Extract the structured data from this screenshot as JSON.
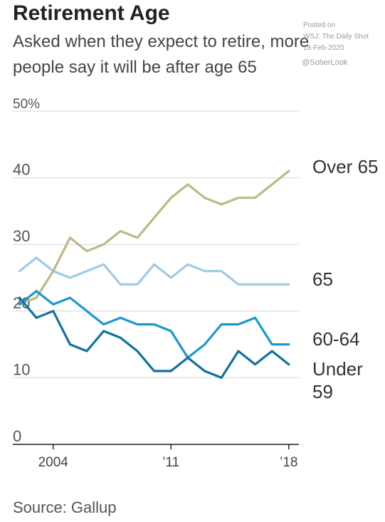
{
  "header": {
    "title": "Retirement Age",
    "subtitle_line1": "Asked when they expect to retire, more",
    "subtitle_line2": "people say it will be after age 65"
  },
  "watermark": {
    "line1": "Posted on",
    "line2": "WSJ: The Daily Shot",
    "line3": "18-Feb-2020",
    "line4": "@SoberLook"
  },
  "source": "Source: Gallup",
  "chart_data": {
    "type": "line",
    "title": "Retirement Age",
    "xlabel": "",
    "ylabel": "",
    "xlim": [
      2001.6,
      2018.6
    ],
    "ylim": [
      0,
      50
    ],
    "y_ticks": [
      {
        "value": 0,
        "label": "0"
      },
      {
        "value": 10,
        "label": "10"
      },
      {
        "value": 20,
        "label": "20"
      },
      {
        "value": 30,
        "label": "30"
      },
      {
        "value": 40,
        "label": "40"
      },
      {
        "value": 50,
        "label": "50%"
      }
    ],
    "x_ticks": [
      {
        "value": 2004,
        "label": "2004"
      },
      {
        "value": 2011,
        "label": "’11"
      },
      {
        "value": 2018,
        "label": "’18"
      }
    ],
    "grid": "horizontal",
    "x": [
      2002,
      2003,
      2004,
      2005,
      2006,
      2007,
      2008,
      2009,
      2010,
      2011,
      2012,
      2013,
      2014,
      2015,
      2016,
      2017,
      2018
    ],
    "series": [
      {
        "name": "Over 65",
        "color": "#bdb985",
        "label_lines": [
          "Over 65"
        ],
        "values": [
          21,
          22,
          26,
          31,
          29,
          30,
          32,
          31,
          34,
          37,
          39,
          37,
          36,
          37,
          37,
          39,
          41
        ]
      },
      {
        "name": "65",
        "color": "#9fcbe7",
        "label_lines": [
          "65"
        ],
        "values": [
          26,
          28,
          26,
          25,
          26,
          27,
          24,
          24,
          27,
          25,
          27,
          26,
          26,
          24,
          24,
          24,
          24
        ]
      },
      {
        "name": "60-64",
        "color": "#1b98d4",
        "label_lines": [
          "60-64"
        ],
        "values": [
          21,
          23,
          21,
          22,
          20,
          18,
          19,
          18,
          18,
          17,
          13,
          15,
          18,
          18,
          19,
          15,
          15
        ]
      },
      {
        "name": "Under 59",
        "color": "#10729e",
        "label_lines": [
          "Under",
          "59"
        ],
        "values": [
          22,
          19,
          20,
          15,
          14,
          17,
          16,
          14,
          11,
          11,
          13,
          11,
          10,
          14,
          12,
          14,
          12
        ]
      }
    ]
  }
}
